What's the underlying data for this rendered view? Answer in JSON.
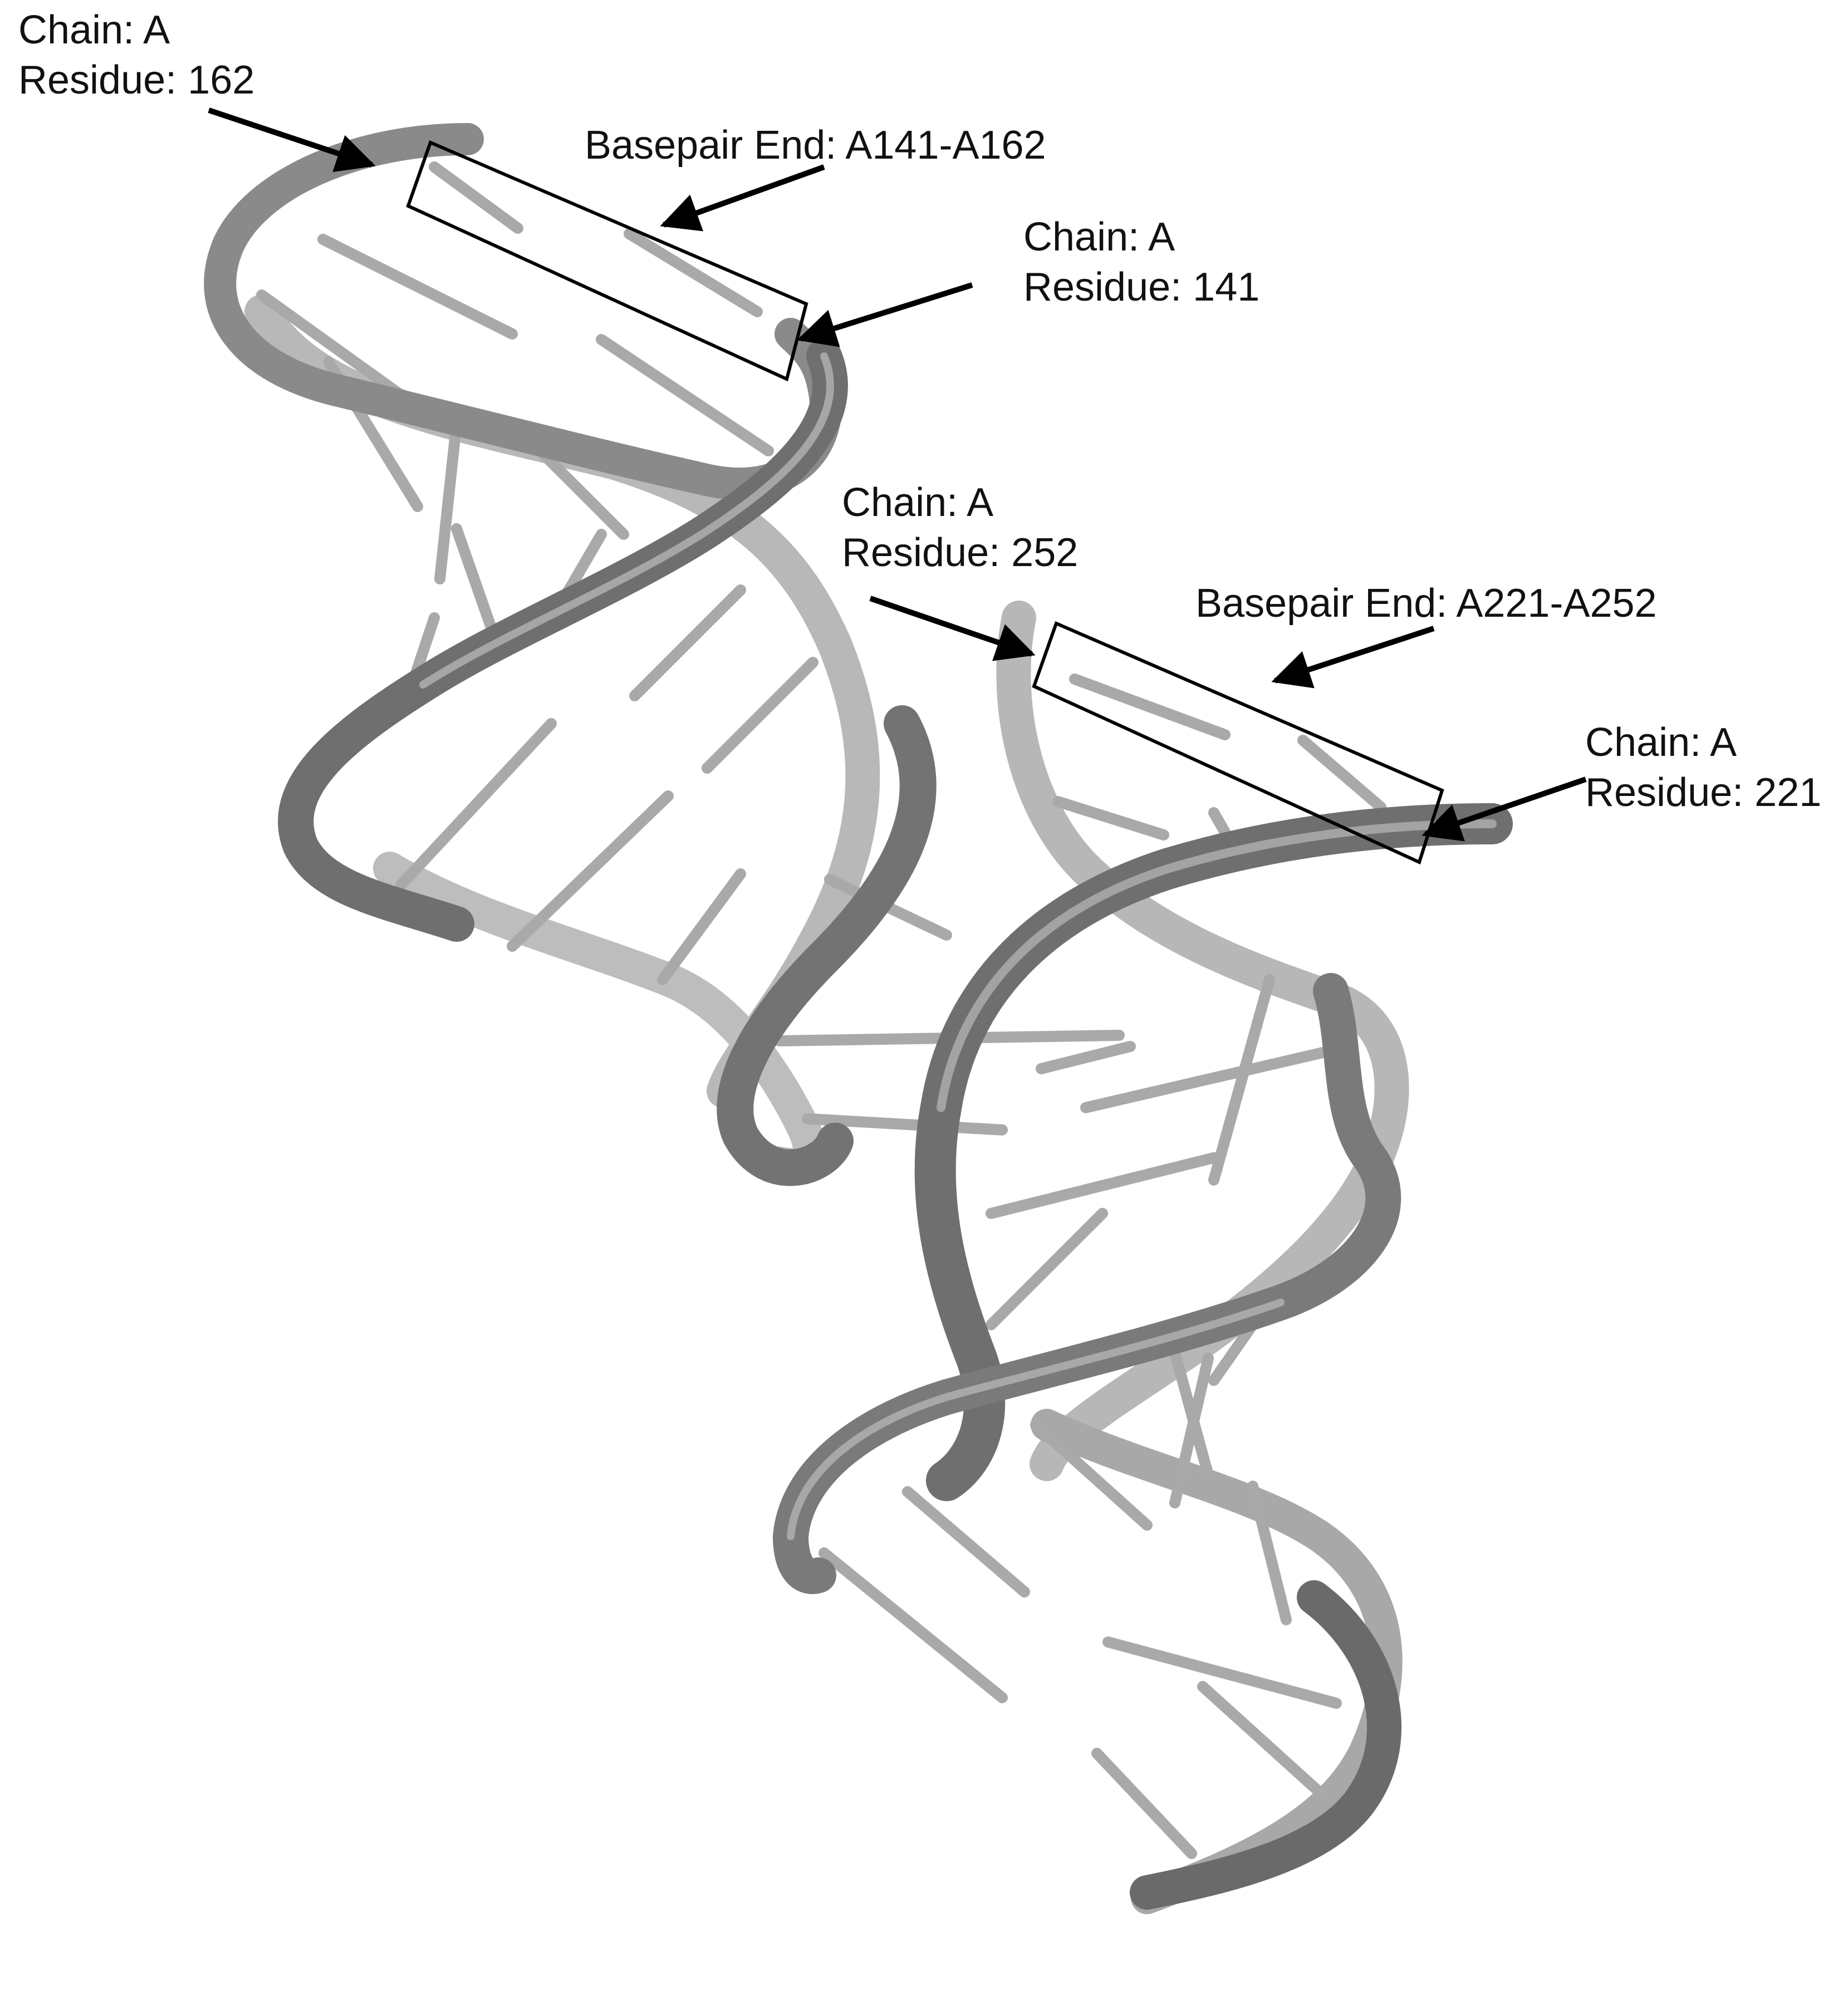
{
  "figure": {
    "background": "#ffffff",
    "structure": "RNA double helix cartoon with two helical segments, rendered in grayscale",
    "colors": {
      "backbone_dark": "#6a6a6a",
      "backbone_light": "#b5b5b5",
      "rung": "#a9a9a9",
      "annotation": "#000000"
    },
    "annotations": {
      "residue_162": {
        "line1": "Chain: A",
        "line2": "Residue: 162"
      },
      "basepair_end_1": {
        "text": "Basepair End: A141-A162"
      },
      "residue_141": {
        "line1": "Chain: A",
        "line2": "Residue: 141"
      },
      "residue_252": {
        "line1": "Chain: A",
        "line2": "Residue: 252"
      },
      "basepair_end_2": {
        "text": "Basepair End: A221-A252"
      },
      "residue_221": {
        "line1": "Chain: A",
        "line2": "Residue: 221"
      }
    }
  }
}
